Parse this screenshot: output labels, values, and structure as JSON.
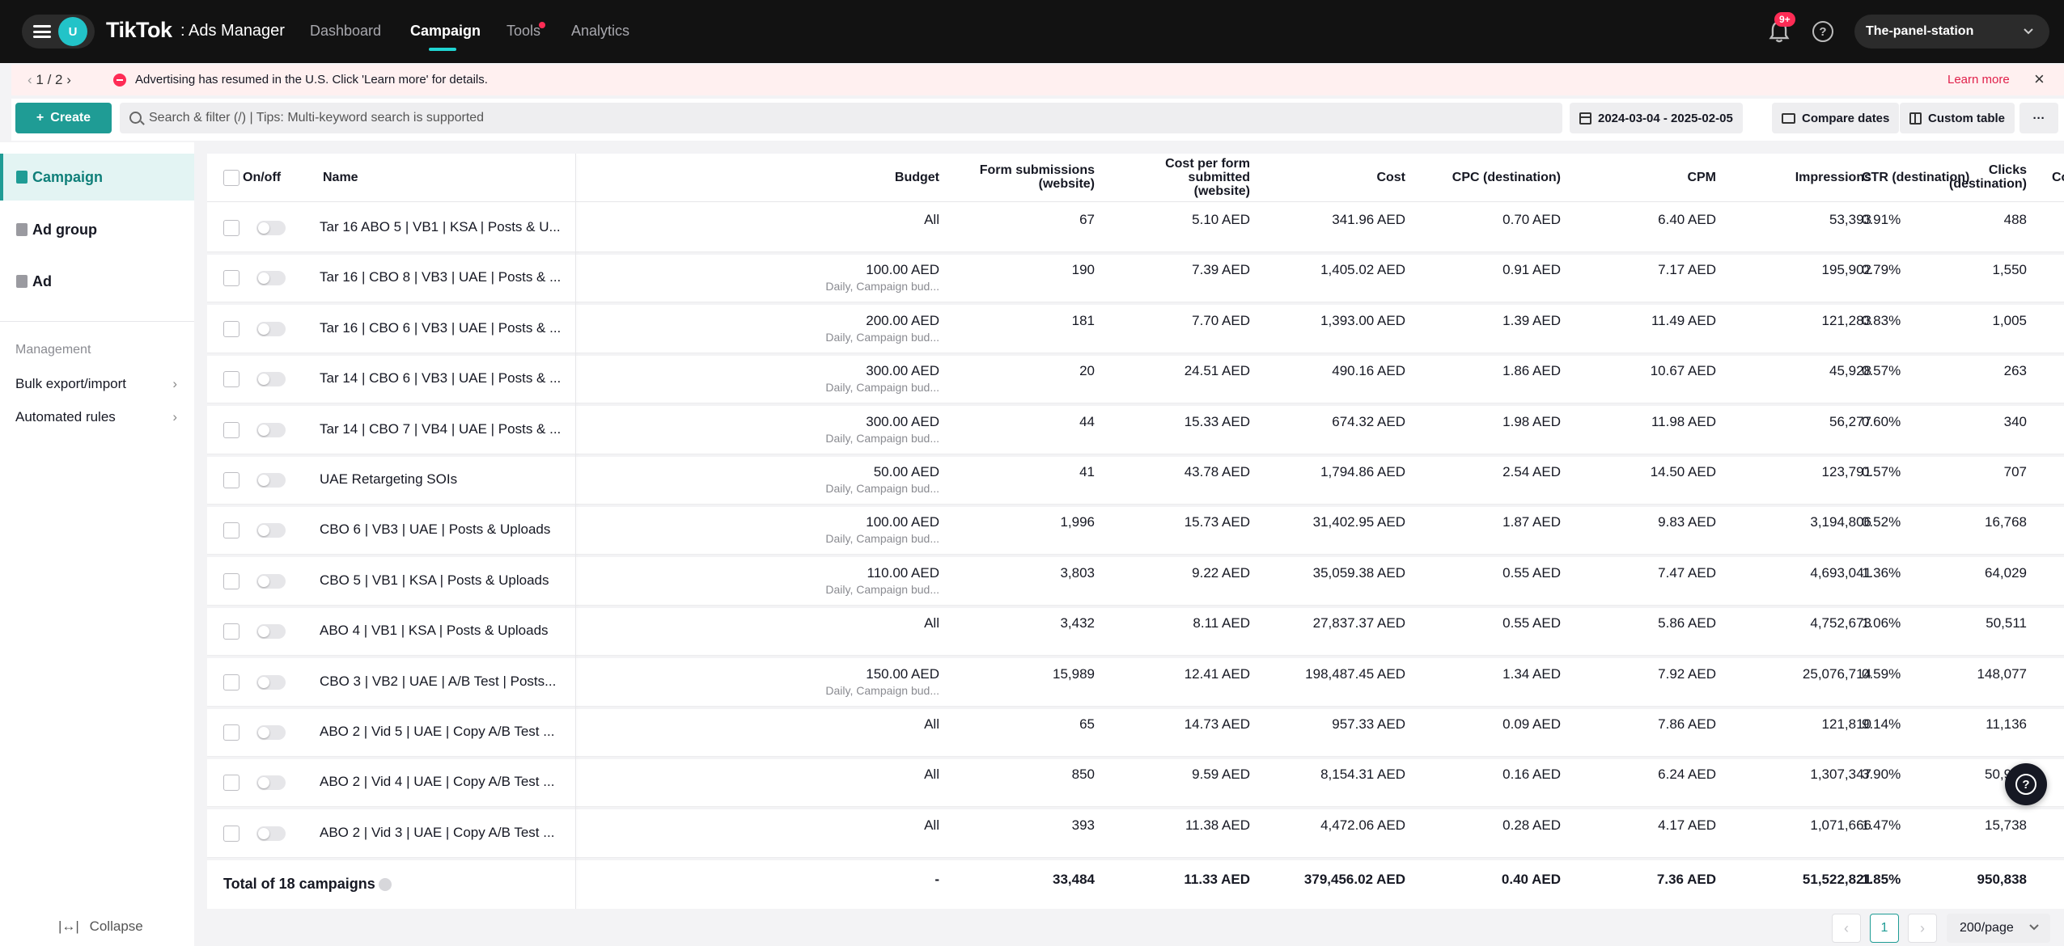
{
  "header": {
    "avatar_letter": "U",
    "logo": "TikTok",
    "logo_sub": ": Ads Manager",
    "nav": [
      "Dashboard",
      "Campaign",
      "Tools",
      "Analytics"
    ],
    "active_nav": "Campaign",
    "notification_badge": "9+",
    "account": "The-panel-station"
  },
  "notice": {
    "pager": "1 / 2",
    "text": "Advertising has resumed in the U.S. Click 'Learn more' for details.",
    "learn_more": "Learn more"
  },
  "toolbar": {
    "create_label": "Create",
    "search_placeholder": "Search & filter (/) | Tips: Multi-keyword search is supported",
    "date_range": "2024-03-04 - 2025-02-05",
    "compare_label": "Compare dates",
    "custom_table_label": "Custom table",
    "more_label": "···"
  },
  "sidebar": {
    "levels": [
      "Campaign",
      "Ad group",
      "Ad"
    ],
    "management_title": "Management",
    "management_items": [
      "Bulk export/import",
      "Automated rules"
    ],
    "collapse_label": "Collapse"
  },
  "table": {
    "columns": {
      "onoff": "On/off",
      "name": "Name",
      "budget": "Budget",
      "form_submissions": [
        "Form submissions",
        "(website)"
      ],
      "cost_per_form": [
        "Cost per form",
        "submitted",
        "(website)"
      ],
      "cost": "Cost",
      "cpc": "CPC (destination)",
      "cpm": "CPM",
      "impressions": "Impressions",
      "clicks": [
        "Clicks",
        "(destination)"
      ],
      "ctr": "CTR (destination)",
      "next": "Co"
    },
    "rows": [
      {
        "name": "Tar 16 ABO 5 | VB1 | KSA | Posts & U...",
        "budget": "All",
        "budget_sub": "",
        "forms": "67",
        "cpf": "5.10 AED",
        "cost": "341.96 AED",
        "cpc": "0.70 AED",
        "cpm": "6.40 AED",
        "impressions": "53,393",
        "clicks": "488",
        "ctr": "0.91%"
      },
      {
        "name": "Tar 16 | CBO 8 | VB3 | UAE | Posts & ...",
        "budget": "100.00 AED",
        "budget_sub": "Daily, Campaign bud...",
        "forms": "190",
        "cpf": "7.39 AED",
        "cost": "1,405.02 AED",
        "cpc": "0.91 AED",
        "cpm": "7.17 AED",
        "impressions": "195,902",
        "clicks": "1,550",
        "ctr": "0.79%"
      },
      {
        "name": "Tar 16 | CBO 6 | VB3 | UAE | Posts & ...",
        "budget": "200.00 AED",
        "budget_sub": "Daily, Campaign bud...",
        "forms": "181",
        "cpf": "7.70 AED",
        "cost": "1,393.00 AED",
        "cpc": "1.39 AED",
        "cpm": "11.49 AED",
        "impressions": "121,283",
        "clicks": "1,005",
        "ctr": "0.83%"
      },
      {
        "name": "Tar 14 | CBO 6 | VB3 | UAE | Posts & ...",
        "budget": "300.00 AED",
        "budget_sub": "Daily, Campaign bud...",
        "forms": "20",
        "cpf": "24.51 AED",
        "cost": "490.16 AED",
        "cpc": "1.86 AED",
        "cpm": "10.67 AED",
        "impressions": "45,928",
        "clicks": "263",
        "ctr": "0.57%"
      },
      {
        "name": "Tar 14 | CBO 7 | VB4 | UAE | Posts & ...",
        "budget": "300.00 AED",
        "budget_sub": "Daily, Campaign bud...",
        "forms": "44",
        "cpf": "15.33 AED",
        "cost": "674.32 AED",
        "cpc": "1.98 AED",
        "cpm": "11.98 AED",
        "impressions": "56,277",
        "clicks": "340",
        "ctr": "0.60%"
      },
      {
        "name": "UAE Retargeting SOIs",
        "budget": "50.00 AED",
        "budget_sub": "Daily, Campaign bud...",
        "forms": "41",
        "cpf": "43.78 AED",
        "cost": "1,794.86 AED",
        "cpc": "2.54 AED",
        "cpm": "14.50 AED",
        "impressions": "123,791",
        "clicks": "707",
        "ctr": "0.57%"
      },
      {
        "name": "CBO 6 | VB3 | UAE | Posts & Uploads",
        "budget": "100.00 AED",
        "budget_sub": "Daily, Campaign bud...",
        "forms": "1,996",
        "cpf": "15.73 AED",
        "cost": "31,402.95 AED",
        "cpc": "1.87 AED",
        "cpm": "9.83 AED",
        "impressions": "3,194,806",
        "clicks": "16,768",
        "ctr": "0.52%"
      },
      {
        "name": "CBO 5 | VB1 | KSA | Posts & Uploads",
        "budget": "110.00 AED",
        "budget_sub": "Daily, Campaign bud...",
        "forms": "3,803",
        "cpf": "9.22 AED",
        "cost": "35,059.38 AED",
        "cpc": "0.55 AED",
        "cpm": "7.47 AED",
        "impressions": "4,693,041",
        "clicks": "64,029",
        "ctr": "1.36%"
      },
      {
        "name": "ABO 4 | VB1 | KSA | Posts & Uploads",
        "budget": "All",
        "budget_sub": "",
        "forms": "3,432",
        "cpf": "8.11 AED",
        "cost": "27,837.37 AED",
        "cpc": "0.55 AED",
        "cpm": "5.86 AED",
        "impressions": "4,752,673",
        "clicks": "50,511",
        "ctr": "1.06%"
      },
      {
        "name": "CBO 3 | VB2 | UAE | A/B Test | Posts...",
        "budget": "150.00 AED",
        "budget_sub": "Daily, Campaign bud...",
        "forms": "15,989",
        "cpf": "12.41 AED",
        "cost": "198,487.45 AED",
        "cpc": "1.34 AED",
        "cpm": "7.92 AED",
        "impressions": "25,076,714",
        "clicks": "148,077",
        "ctr": "0.59%"
      },
      {
        "name": "ABO 2 | Vid 5 | UAE | Copy A/B Test ...",
        "budget": "All",
        "budget_sub": "",
        "forms": "65",
        "cpf": "14.73 AED",
        "cost": "957.33 AED",
        "cpc": "0.09 AED",
        "cpm": "7.86 AED",
        "impressions": "121,810",
        "clicks": "11,136",
        "ctr": "9.14%"
      },
      {
        "name": "ABO 2 | Vid 4 | UAE | Copy A/B Test ...",
        "budget": "All",
        "budget_sub": "",
        "forms": "850",
        "cpf": "9.59 AED",
        "cost": "8,154.31 AED",
        "cpc": "0.16 AED",
        "cpm": "6.24 AED",
        "impressions": "1,307,347",
        "clicks": "50,922",
        "ctr": "3.90%"
      },
      {
        "name": "ABO 2 | Vid 3 | UAE | Copy A/B Test ...",
        "budget": "All",
        "budget_sub": "",
        "forms": "393",
        "cpf": "11.38 AED",
        "cost": "4,472.06 AED",
        "cpc": "0.28 AED",
        "cpm": "4.17 AED",
        "impressions": "1,071,666",
        "clicks": "15,738",
        "ctr": "1.47%"
      }
    ],
    "total": {
      "label": "Total of 18 campaigns",
      "budget": "-",
      "forms": "33,484",
      "cpf": "11.33 AED",
      "cost": "379,456.02 AED",
      "cpc": "0.40 AED",
      "cpm": "7.36 AED",
      "impressions": "51,522,821",
      "clicks": "950,838",
      "ctr": "1.85%"
    }
  },
  "pagination": {
    "current_page": "1",
    "page_size": "200/page"
  },
  "colors": {
    "accent": "#1f9c95",
    "brand_red": "#fe2c55",
    "topbar": "#121212"
  }
}
